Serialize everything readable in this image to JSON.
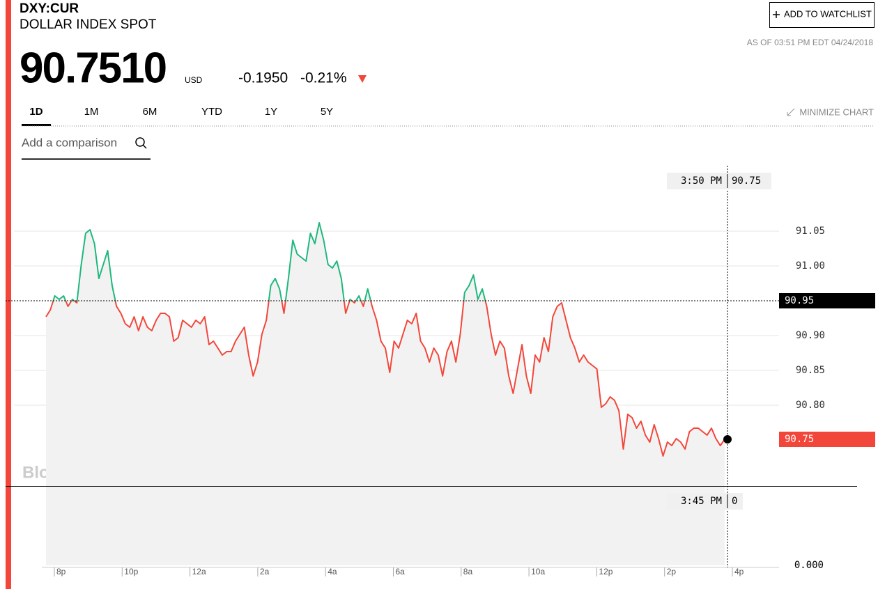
{
  "header": {
    "ticker": "DXY:CUR",
    "name": "DOLLAR INDEX SPOT",
    "price": "90.7510",
    "currency": "USD",
    "change": "-0.1950",
    "change_percent": "-0.21%",
    "as_of": "AS OF 03:51 PM EDT 04/24/2018",
    "watchlist_button": "ADD TO WATCHLIST",
    "minimize": "MINIMIZE CHART",
    "comparison_placeholder": "Add a comparison",
    "tabs": [
      "1D",
      "1M",
      "6M",
      "YTD",
      "1Y",
      "5Y"
    ],
    "active_tab": 0
  },
  "chart_data": {
    "type": "line",
    "watermark": "BloombergMarkets",
    "x_labels": [
      "8p",
      "10p",
      "12a",
      "2a",
      "4a",
      "6a",
      "8a",
      "10a",
      "12p",
      "2p",
      "4p"
    ],
    "series": [
      {
        "name": "DXY:CUR",
        "color_up": "#1db87c",
        "color_down": "#f3463a",
        "values": [
          90.927,
          90.937,
          90.957,
          90.952,
          90.957,
          90.942,
          90.952,
          90.947,
          91.002,
          91.047,
          91.052,
          91.032,
          90.982,
          91.002,
          91.022,
          90.972,
          90.942,
          90.932,
          90.917,
          90.912,
          90.927,
          90.907,
          90.927,
          90.912,
          90.907,
          90.922,
          90.932,
          90.932,
          90.927,
          90.892,
          90.897,
          90.922,
          90.917,
          90.912,
          90.922,
          90.917,
          90.927,
          90.887,
          90.892,
          90.882,
          90.872,
          90.877,
          90.877,
          90.892,
          90.902,
          90.912,
          90.872,
          90.842,
          90.862,
          90.902,
          90.922,
          90.972,
          90.982,
          90.967,
          90.932,
          90.982,
          91.037,
          91.017,
          91.012,
          91.007,
          91.047,
          91.032,
          91.062,
          91.037,
          91.002,
          90.997,
          91.007,
          90.982,
          90.932,
          90.952,
          90.947,
          90.957,
          90.942,
          90.967,
          90.942,
          90.922,
          90.892,
          90.882,
          90.847,
          90.892,
          90.882,
          90.902,
          90.922,
          90.917,
          90.932,
          90.892,
          90.882,
          90.862,
          90.882,
          90.872,
          90.842,
          90.877,
          90.892,
          90.862,
          90.902,
          90.962,
          90.972,
          90.987,
          90.952,
          90.967,
          90.942,
          90.902,
          90.872,
          90.892,
          90.882,
          90.842,
          90.817,
          90.852,
          90.887,
          90.842,
          90.817,
          90.872,
          90.862,
          90.897,
          90.877,
          90.927,
          90.942,
          90.947,
          90.922,
          90.897,
          90.882,
          90.862,
          90.872,
          90.862,
          90.857,
          90.852,
          90.797,
          90.802,
          90.812,
          90.807,
          90.792,
          90.737,
          90.787,
          90.782,
          90.767,
          90.777,
          90.757,
          90.747,
          90.772,
          90.752,
          90.727,
          90.747,
          90.742,
          90.752,
          90.747,
          90.737,
          90.762,
          90.767,
          90.767,
          90.762,
          90.757,
          90.767,
          90.752,
          90.742,
          90.751
        ]
      }
    ],
    "ylim": [
      90.68,
      91.15
    ],
    "yticks": [
      {
        "value": 90.8,
        "label": "90.80"
      },
      {
        "value": 90.85,
        "label": "90.85"
      },
      {
        "value": 90.9,
        "label": "90.90"
      },
      {
        "value": 91.0,
        "label": "91.00"
      },
      {
        "value": 91.05,
        "label": "91.05"
      }
    ],
    "grid": true,
    "reference": {
      "value": 90.95,
      "label": "90.95"
    },
    "current_label": "90.75",
    "y2lim": [
      0,
      1
    ],
    "y2ticks": [
      {
        "value": 0,
        "label": "0.000"
      }
    ],
    "crosshair": {
      "time": "3:50 PM",
      "price": "90.75",
      "volume_time": "3:45 PM",
      "volume": "0"
    }
  }
}
